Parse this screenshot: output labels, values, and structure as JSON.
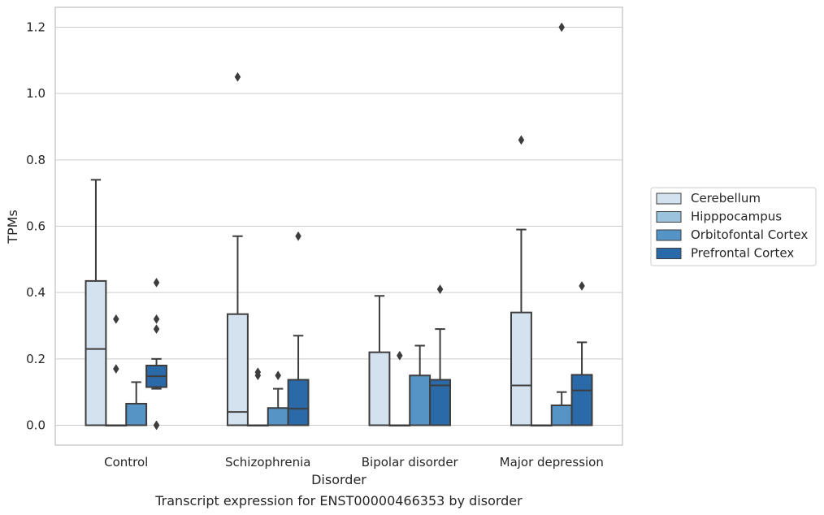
{
  "caption": "Transcript expression for ENST00000466353 by disorder",
  "chart_data": {
    "type": "box",
    "xlabel": "Disorder",
    "ylabel": "TPMs",
    "ylim": [
      -0.06,
      1.26
    ],
    "yticks": [
      0.0,
      0.2,
      0.4,
      0.6,
      0.8,
      1.0,
      1.2
    ],
    "ytick_labels": [
      "0.0",
      "0.2",
      "0.4",
      "0.6",
      "0.8",
      "1.0",
      "1.2"
    ],
    "grid": "horizontal",
    "legend_position": "right",
    "categories": [
      "Control",
      "Schizophrenia",
      "Bipolar disorder",
      "Major depression"
    ],
    "series": [
      {
        "name": "Cerebellum",
        "color": "#d4e2f0",
        "boxes": [
          {
            "q1": 0,
            "median": 0.23,
            "q3": 0.435,
            "wlow": 0,
            "whigh": 0.74,
            "outliers": []
          },
          {
            "q1": 0,
            "median": 0.04,
            "q3": 0.335,
            "wlow": 0,
            "whigh": 0.57,
            "outliers": [
              1.05
            ]
          },
          {
            "q1": 0,
            "median": 0,
            "q3": 0.22,
            "wlow": 0,
            "whigh": 0.39,
            "outliers": []
          },
          {
            "q1": 0,
            "median": 0.12,
            "q3": 0.34,
            "wlow": 0,
            "whigh": 0.59,
            "outliers": [
              0.86
            ]
          }
        ]
      },
      {
        "name": "Hipppocampus",
        "color": "#9cc3de",
        "boxes": [
          {
            "q1": 0,
            "median": 0,
            "q3": 0,
            "wlow": 0,
            "whigh": 0,
            "outliers": [
              0.32,
              0.17
            ]
          },
          {
            "q1": 0,
            "median": 0,
            "q3": 0,
            "wlow": 0,
            "whigh": 0,
            "outliers": [
              0.16,
              0.15
            ]
          },
          {
            "q1": 0,
            "median": 0,
            "q3": 0,
            "wlow": 0,
            "whigh": 0,
            "outliers": [
              0.21
            ]
          },
          {
            "q1": 0,
            "median": 0,
            "q3": 0,
            "wlow": 0,
            "whigh": 0,
            "outliers": []
          }
        ]
      },
      {
        "name": "Orbitofontal Cortex",
        "color": "#5594c5",
        "boxes": [
          {
            "q1": 0,
            "median": 0,
            "q3": 0.065,
            "wlow": 0,
            "whigh": 0.13,
            "outliers": []
          },
          {
            "q1": 0,
            "median": 0,
            "q3": 0.052,
            "wlow": 0,
            "whigh": 0.11,
            "outliers": [
              0.15
            ]
          },
          {
            "q1": 0,
            "median": 0,
            "q3": 0.15,
            "wlow": 0,
            "whigh": 0.24,
            "outliers": []
          },
          {
            "q1": 0,
            "median": 0,
            "q3": 0.06,
            "wlow": 0,
            "whigh": 0.1,
            "outliers": [
              1.2
            ]
          }
        ]
      },
      {
        "name": "Prefrontal Cortex",
        "color": "#2b6aa8",
        "boxes": [
          {
            "q1": 0.115,
            "median": 0.148,
            "q3": 0.18,
            "wlow": 0.11,
            "whigh": 0.2,
            "outliers": [
              0.43,
              0.32,
              0.29,
              0.0,
              0.0
            ]
          },
          {
            "q1": 0,
            "median": 0.05,
            "q3": 0.137,
            "wlow": 0,
            "whigh": 0.27,
            "outliers": [
              0.57
            ]
          },
          {
            "q1": 0,
            "median": 0.12,
            "q3": 0.137,
            "wlow": 0,
            "whigh": 0.29,
            "outliers": [
              0.41
            ]
          },
          {
            "q1": 0,
            "median": 0.105,
            "q3": 0.152,
            "wlow": 0,
            "whigh": 0.25,
            "outliers": [
              0.42
            ]
          }
        ]
      }
    ]
  }
}
